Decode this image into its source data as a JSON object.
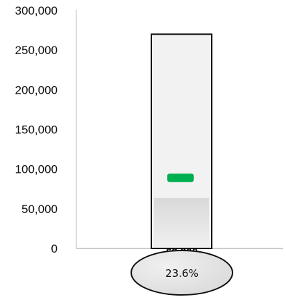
{
  "chart_data": {
    "type": "bar",
    "title": "",
    "xlabel": "",
    "ylabel": "",
    "ylim": [
      0,
      300000
    ],
    "yticks": [
      0,
      50000,
      100000,
      150000,
      200000,
      250000,
      300000
    ],
    "ytick_labels": [
      "0",
      "50,000",
      "100,000",
      "150,000",
      "200,000",
      "250,000",
      "300,000"
    ],
    "grid": false,
    "legend": "none",
    "target": 270000,
    "actual": 63800,
    "marker_value": 89000,
    "percent_label": "23.6%",
    "bar_label": "63,800",
    "colors": {
      "outline": "#111111",
      "outer_fill": "#f2f2f2",
      "actual_fill_top": "#d9d9d9",
      "actual_fill_bottom": "#f0f0f0",
      "marker": "#00b050",
      "ellipse_fill": "#d9d9d9",
      "axis": "#999999"
    }
  }
}
